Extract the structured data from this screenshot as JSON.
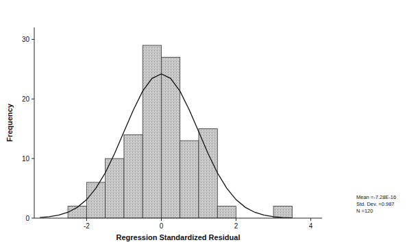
{
  "chart_data": {
    "type": "histogram",
    "xlabel": "Regression Standardized Residual",
    "ylabel": "Frequency",
    "bins": [
      -2.5,
      -2,
      -1.5,
      -1,
      -0.5,
      0,
      0.5,
      1,
      1.5,
      2,
      2.5,
      3,
      3.5
    ],
    "values": [
      2,
      6,
      10,
      14,
      29,
      27,
      13,
      15,
      2,
      0,
      0,
      2
    ],
    "color": "#c4c4c4",
    "curve": {
      "x": [
        -3.25,
        -3,
        -2.75,
        -2.5,
        -2.25,
        -2,
        -1.75,
        -1.5,
        -1.25,
        -1,
        -0.75,
        -0.5,
        -0.25,
        0,
        0.25,
        0.5,
        0.75,
        1,
        1.25,
        1.5,
        1.75,
        2,
        2.25,
        2.5,
        2.75,
        3,
        3.25,
        3.5
      ],
      "values": [
        0.11,
        0.24,
        0.5,
        0.98,
        1.8,
        3.1,
        5.03,
        7.6,
        10.85,
        14.5,
        18.13,
        21.3,
        23.44,
        24.2,
        23.44,
        21.3,
        18.13,
        14.5,
        10.85,
        7.6,
        5.03,
        3.1,
        1.8,
        0.98,
        0.5,
        0.24,
        0.11,
        0.05
      ]
    },
    "xlim": [
      -3.4,
      4.3
    ],
    "xticks": [
      -2,
      0,
      2,
      4
    ],
    "ylim": [
      0,
      32
    ],
    "yticks": [
      0,
      10,
      20,
      30
    ],
    "annotations": [
      "Mean =-7.28E-16",
      "Std. Dev. =0.987",
      "N =120"
    ]
  }
}
